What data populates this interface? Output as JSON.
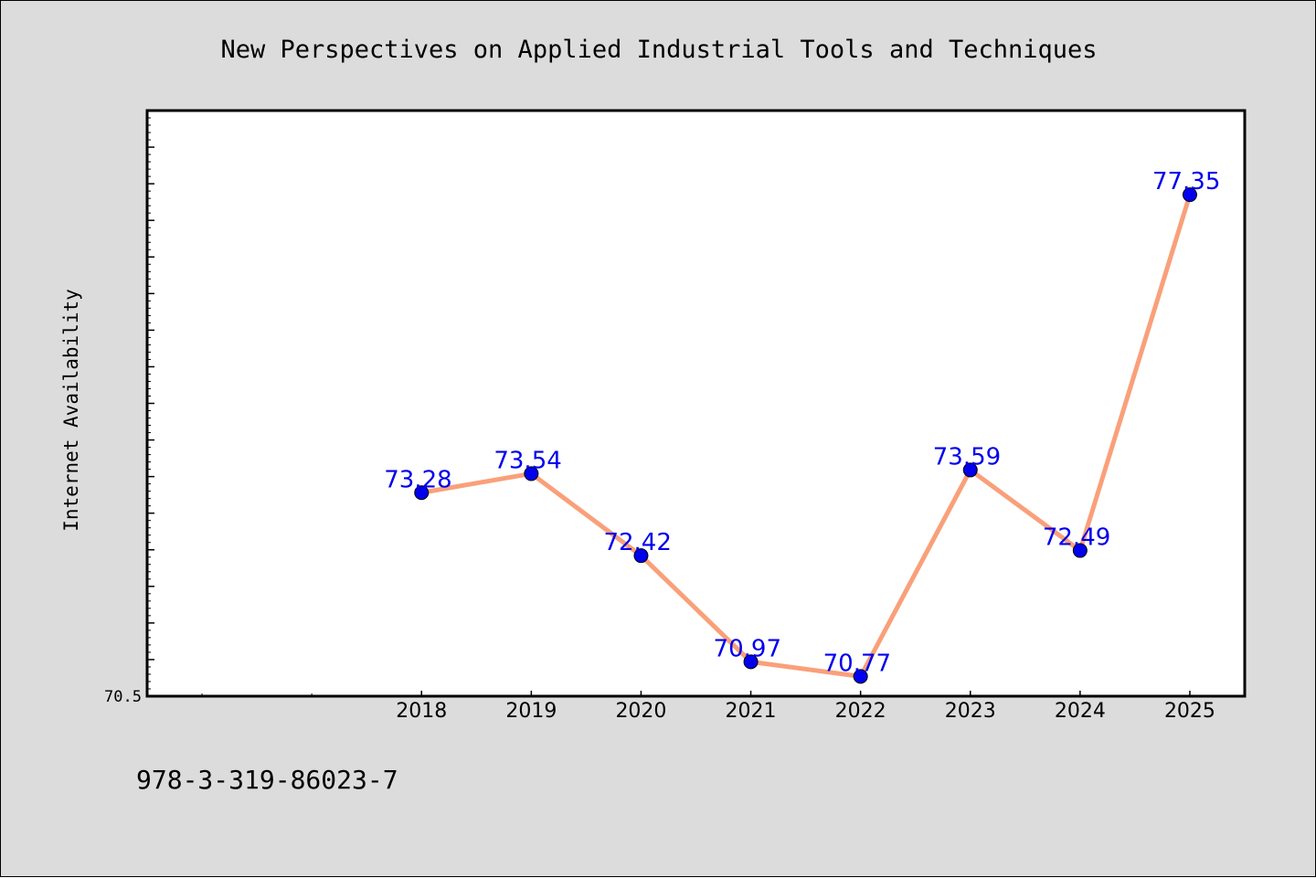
{
  "colors": {
    "figure_background": "#dcdcdc",
    "plot_background": "#ffffff",
    "line": "#f9a07a",
    "marker": "#0000ee",
    "data_label": "#0000ee",
    "axis": "#000000"
  },
  "footer": {
    "isbn": "978-3-319-86023-7"
  },
  "chart_data": {
    "type": "line",
    "title": "New Perspectives on Applied Industrial Tools and Techniques",
    "xlabel": "",
    "ylabel": "Internet Availability",
    "categories": [
      "2018",
      "2019",
      "2020",
      "2021",
      "2022",
      "2023",
      "2024",
      "2025"
    ],
    "x_tick_labels": [
      "2018",
      "2019",
      "2020",
      "2021",
      "2022",
      "2023",
      "2024",
      "2025"
    ],
    "y_tick_labels": [
      "70.5"
    ],
    "xlim": [
      2015.5,
      2025.5
    ],
    "ylim": [
      70.5,
      78.5
    ],
    "series": [
      {
        "x": [
          2018,
          2019,
          2020,
          2021,
          2022,
          2023,
          2024,
          2025
        ],
        "values": [
          73.28,
          73.54,
          72.42,
          70.97,
          70.77,
          73.59,
          72.49,
          77.35
        ],
        "labels": [
          "73.28",
          "73.54",
          "72.42",
          "70.97",
          "70.77",
          "73.59",
          "72.49",
          "77.35"
        ]
      }
    ],
    "markers": "filled circles",
    "data_labels": true,
    "grid": false,
    "legend": "none"
  }
}
